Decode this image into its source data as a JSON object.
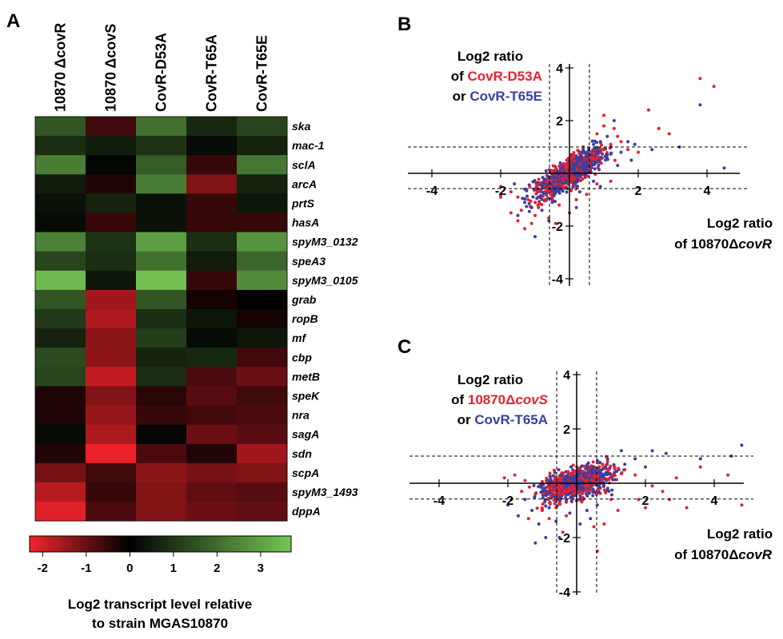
{
  "panels": {
    "a": "A",
    "b": "B",
    "c": "C"
  },
  "heatmap": {
    "columns": [
      "10870 ΔcovR",
      "10870 ΔcovS",
      "CovR-D53A",
      "CovR-T65A",
      "CovR-T65E"
    ],
    "colorbar": {
      "ticks": [
        "-2",
        "-1",
        "0",
        "1",
        "2",
        "3"
      ],
      "tick_values": [
        -2,
        -1,
        0,
        1,
        2,
        3
      ],
      "range": [
        -2.3,
        3.7
      ],
      "title_line1": "Log2 transcript level relative",
      "title_line2": "to strain MGAS10870"
    }
  },
  "scatter_b": {
    "ylabel": {
      "l1": "Log2 ratio",
      "l2a": "of ",
      "l2b": "CovR-D53A",
      "l3a": "or ",
      "l3b": "CovR-T65E"
    },
    "xlabel": {
      "l1": "Log2 ratio",
      "l2": "of 10870Δ",
      "l2i": "covR"
    },
    "xticks": [
      "-4",
      "-2",
      "2",
      "4"
    ],
    "yticks": [
      "4",
      "2",
      "-2",
      "-4"
    ]
  },
  "scatter_c": {
    "ylabel": {
      "l1": "Log2 ratio",
      "l2a": "of ",
      "l2b": "10870Δ",
      "l2c": "covS",
      "l3a": "or ",
      "l3b": "CovR-T65A"
    },
    "xlabel": {
      "l1": "Log2 ratio",
      "l2": "of 10870Δ",
      "l2i": "covR"
    },
    "xticks": [
      "-4",
      "-2",
      "2",
      "4"
    ],
    "yticks": [
      "4",
      "2",
      "-2",
      "-4"
    ]
  },
  "chart_data": [
    {
      "type": "heatmap",
      "columns": [
        "10870 ΔcovR",
        "10870 ΔcovS",
        "CovR-D53A",
        "CovR-T65A",
        "CovR-T65E"
      ],
      "rows": [
        "ska",
        "mac-1",
        "sclA",
        "arcA",
        "prtS",
        "hasA",
        "spyM3_0132",
        "speA3",
        "spyM3_0105",
        "grab",
        "ropB",
        "mf",
        "cbp",
        "metB",
        "speK",
        "nra",
        "sagA",
        "sdn",
        "scpA",
        "spyM3_1493",
        "dppA"
      ],
      "values": [
        [
          1.5,
          -0.6,
          2.0,
          0.7,
          1.2
        ],
        [
          0.8,
          0.5,
          0.9,
          0.2,
          0.6
        ],
        [
          2.2,
          0.1,
          1.6,
          -0.5,
          2.1
        ],
        [
          0.5,
          -0.3,
          2.2,
          -1.2,
          0.6
        ],
        [
          0.3,
          0.6,
          0.3,
          -0.5,
          0.4
        ],
        [
          0.2,
          -0.5,
          0.3,
          -0.5,
          -0.5
        ],
        [
          2.3,
          0.9,
          2.8,
          0.8,
          2.6
        ],
        [
          1.2,
          0.8,
          2.0,
          0.5,
          1.8
        ],
        [
          3.3,
          0.4,
          3.4,
          -0.5,
          2.5
        ],
        [
          1.5,
          -1.5,
          1.5,
          -0.2,
          0.0
        ],
        [
          1.0,
          -1.6,
          0.8,
          0.4,
          -0.2
        ],
        [
          0.6,
          -1.3,
          1.1,
          0.2,
          0.4
        ],
        [
          1.3,
          -1.3,
          0.6,
          0.7,
          -0.6
        ],
        [
          1.2,
          -1.8,
          0.8,
          -0.7,
          -1.0
        ],
        [
          -0.3,
          -1.2,
          -0.4,
          -0.8,
          -0.6
        ],
        [
          -0.3,
          -1.4,
          -0.5,
          -0.6,
          -0.7
        ],
        [
          0.2,
          -1.6,
          0.1,
          -1.0,
          -0.8
        ],
        [
          -0.3,
          -2.2,
          -0.7,
          -0.3,
          -1.5
        ],
        [
          -1.1,
          -0.6,
          -1.3,
          -1.1,
          -1.2
        ],
        [
          -1.7,
          -0.5,
          -1.2,
          -0.9,
          -0.8
        ],
        [
          -2.1,
          -0.7,
          -1.2,
          -1.0,
          -0.9
        ]
      ],
      "colorbar_range": [
        -2.3,
        3.7
      ],
      "colors": {
        "low": "#e8212b",
        "mid": "#000000",
        "high": "#74c653"
      }
    },
    {
      "type": "scatter",
      "panel": "B",
      "xlim": [
        -5,
        5
      ],
      "ylim": [
        -4,
        4
      ],
      "thresholds": {
        "x": [
          -0.58,
          0.58
        ],
        "y": [
          -0.58,
          1.0
        ]
      },
      "series": [
        {
          "name": "CovR-D53A",
          "color": "#e8212b",
          "points": [
            [
              3.8,
              3.6
            ],
            [
              4.2,
              3.3
            ],
            [
              2.3,
              2.4
            ],
            [
              2.6,
              1.7
            ],
            [
              2.9,
              1.5
            ],
            [
              1.0,
              2.2
            ],
            [
              1.0,
              1.8
            ],
            [
              1.3,
              1.7
            ],
            [
              0.8,
              1.5
            ],
            [
              1.5,
              1.2
            ],
            [
              1.2,
              1.1
            ],
            [
              1.7,
              0.9
            ],
            [
              2.0,
              0.8
            ],
            [
              1.0,
              0.9
            ],
            [
              -2.0,
              -0.9
            ],
            [
              -1.5,
              -1.8
            ],
            [
              -1.3,
              -2.1
            ],
            [
              -1.0,
              -1.6
            ],
            [
              -0.9,
              -1.3
            ],
            [
              -1.7,
              -1.5
            ],
            [
              -1.2,
              -1.0
            ],
            [
              -0.6,
              -1.7
            ],
            [
              -0.4,
              -1.9
            ],
            [
              -0.7,
              -1.0
            ],
            [
              -1.5,
              -0.9
            ],
            [
              -2.0,
              -0.5
            ],
            [
              -1.7,
              -0.7
            ],
            [
              -0.5,
              -0.9
            ],
            [
              -0.3,
              -1.2
            ],
            [
              0.2,
              -1.0
            ],
            [
              0.5,
              -0.8
            ],
            [
              0.8,
              -0.4
            ],
            [
              1.2,
              -0.3
            ],
            [
              0.0,
              -1.5
            ],
            [
              -1.1,
              -1.9
            ],
            [
              -1.4,
              -1.4
            ],
            [
              0.6,
              0.6
            ],
            [
              0.4,
              1.0
            ],
            [
              1.4,
              1.4
            ]
          ]
        },
        {
          "name": "CovR-T65E",
          "color": "#3b3fa0",
          "points": [
            [
              4.5,
              0.2
            ],
            [
              3.8,
              2.6
            ],
            [
              3.2,
              1.0
            ],
            [
              1.7,
              1.2
            ],
            [
              1.3,
              2.0
            ],
            [
              1.1,
              1.4
            ],
            [
              0.9,
              1.2
            ],
            [
              1.5,
              0.8
            ],
            [
              1.9,
              1.1
            ],
            [
              1.8,
              0.5
            ],
            [
              -1.5,
              -1.6
            ],
            [
              -1.1,
              -1.3
            ],
            [
              -0.8,
              -1.4
            ],
            [
              -1.3,
              -1.1
            ],
            [
              -2.0,
              -0.8
            ],
            [
              -0.5,
              -1.1
            ],
            [
              -0.9,
              -0.9
            ],
            [
              -1.3,
              -0.6
            ],
            [
              0.3,
              -0.7
            ],
            [
              0.7,
              -0.3
            ],
            [
              -0.6,
              -1.8
            ],
            [
              -1.6,
              -0.4
            ],
            [
              0.4,
              0.9
            ],
            [
              0.7,
              1.1
            ],
            [
              1.1,
              0.7
            ],
            [
              2.4,
              0.9
            ],
            [
              -1.0,
              -2.4
            ],
            [
              0.9,
              -0.5
            ],
            [
              0.2,
              -1.3
            ],
            [
              1.4,
              0.3
            ]
          ]
        }
      ]
    },
    {
      "type": "scatter",
      "panel": "C",
      "xlim": [
        -5,
        5
      ],
      "ylim": [
        -4,
        4
      ],
      "thresholds": {
        "x": [
          -0.58,
          0.58
        ],
        "y": [
          -0.58,
          1.0
        ]
      },
      "series": [
        {
          "name": "10870ΔcovS",
          "color": "#e8212b",
          "points": [
            [
              4.8,
              -0.8
            ],
            [
              4.4,
              0.3
            ],
            [
              3.6,
              0.6
            ],
            [
              2.9,
              0.2
            ],
            [
              2.5,
              -0.3
            ],
            [
              2.0,
              -0.9
            ],
            [
              1.8,
              -0.6
            ],
            [
              1.2,
              -1.0
            ],
            [
              1.0,
              -0.6
            ],
            [
              0.8,
              -1.5
            ],
            [
              0.5,
              -1.6
            ],
            [
              0.6,
              -2.5
            ],
            [
              -0.4,
              -1.8
            ],
            [
              -0.3,
              -1.2
            ],
            [
              -0.6,
              -0.9
            ],
            [
              -0.8,
              -1.3
            ],
            [
              -1.0,
              -1.0
            ],
            [
              -1.4,
              -1.3
            ],
            [
              -1.2,
              -0.4
            ],
            [
              -1.6,
              -0.3
            ],
            [
              -1.9,
              -0.6
            ],
            [
              -1.8,
              0.3
            ],
            [
              -1.5,
              0.1
            ],
            [
              -2.1,
              0.2
            ],
            [
              -0.3,
              -0.7
            ],
            [
              0.9,
              0.8
            ],
            [
              1.1,
              0.6
            ],
            [
              1.4,
              0.5
            ],
            [
              1.7,
              0.3
            ],
            [
              2.2,
              -0.1
            ],
            [
              3.2,
              -0.9
            ],
            [
              2.7,
              -0.6
            ]
          ]
        },
        {
          "name": "CovR-T65A",
          "color": "#3b3fa0",
          "points": [
            [
              4.8,
              1.4
            ],
            [
              4.5,
              1.0
            ],
            [
              3.6,
              0.9
            ],
            [
              2.6,
              1.1
            ],
            [
              2.2,
              1.2
            ],
            [
              1.7,
              0.9
            ],
            [
              1.4,
              0.7
            ],
            [
              1.1,
              0.4
            ],
            [
              0.8,
              0.3
            ],
            [
              0.6,
              -0.8
            ],
            [
              0.4,
              -1.3
            ],
            [
              -0.5,
              -2.0
            ],
            [
              -0.6,
              -1.4
            ],
            [
              -0.8,
              -0.9
            ],
            [
              -1.1,
              -1.5
            ],
            [
              -1.3,
              -1.0
            ],
            [
              -1.5,
              -0.6
            ],
            [
              -1.7,
              -1.2
            ],
            [
              -2.0,
              -0.8
            ],
            [
              -1.0,
              -0.3
            ],
            [
              -0.2,
              -1.1
            ],
            [
              0.1,
              -1.5
            ],
            [
              0.9,
              0.9
            ],
            [
              1.3,
              1.2
            ],
            [
              2.0,
              0.6
            ],
            [
              -1.2,
              -2.2
            ],
            [
              -0.9,
              -2.0
            ],
            [
              0.3,
              -1.0
            ]
          ]
        }
      ]
    }
  ]
}
